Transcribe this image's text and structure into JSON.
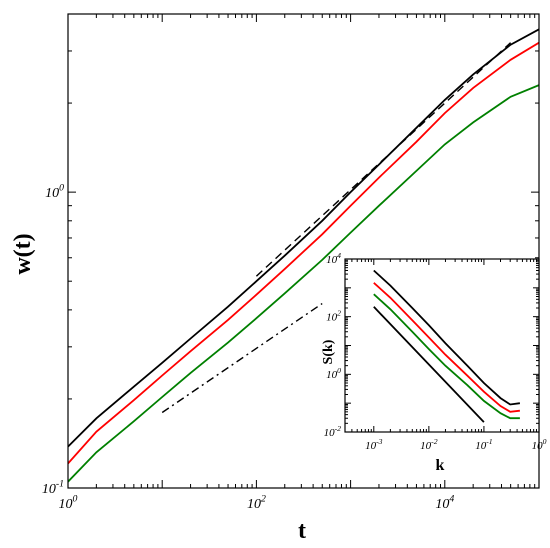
{
  "chart_data": [
    {
      "type": "line",
      "title": "",
      "xlabel": "t",
      "ylabel": "w(t)",
      "xscale": "log",
      "yscale": "log",
      "xlim": [
        1,
        100000
      ],
      "ylim": [
        0.1,
        4
      ],
      "x_tick_labels": [
        {
          "value": 1,
          "base": "10",
          "exp": "0"
        },
        {
          "value": 100,
          "base": "10",
          "exp": "2"
        },
        {
          "value": 10000,
          "base": "10",
          "exp": "4"
        }
      ],
      "y_tick_labels": [
        {
          "value": 0.1,
          "base": "10",
          "exp": "-1"
        },
        {
          "value": 1,
          "base": "10",
          "exp": "0"
        }
      ],
      "grid": false,
      "series": [
        {
          "color": "#000000",
          "style": "solid",
          "x": [
            1,
            2,
            5,
            10,
            20,
            50,
            100,
            200,
            500,
            1000,
            2000,
            5000,
            10000,
            20000,
            50000,
            100000
          ],
          "y": [
            0.138,
            0.172,
            0.22,
            0.265,
            0.32,
            0.41,
            0.5,
            0.61,
            0.8,
            1.0,
            1.24,
            1.65,
            2.05,
            2.5,
            3.15,
            3.55
          ]
        },
        {
          "color": "#ff0000",
          "style": "solid",
          "x": [
            1,
            2,
            5,
            10,
            20,
            50,
            100,
            200,
            500,
            1000,
            2000,
            5000,
            10000,
            20000,
            50000,
            100000
          ],
          "y": [
            0.121,
            0.155,
            0.198,
            0.24,
            0.29,
            0.37,
            0.45,
            0.55,
            0.72,
            0.9,
            1.12,
            1.48,
            1.85,
            2.25,
            2.8,
            3.2
          ]
        },
        {
          "color": "#008000",
          "style": "solid",
          "x": [
            1,
            2,
            5,
            10,
            20,
            50,
            100,
            200,
            500,
            1000,
            2000,
            5000,
            10000,
            20000,
            50000,
            100000
          ],
          "y": [
            0.105,
            0.132,
            0.168,
            0.203,
            0.245,
            0.31,
            0.375,
            0.455,
            0.59,
            0.73,
            0.9,
            1.18,
            1.45,
            1.72,
            2.1,
            2.3
          ]
        },
        {
          "color": "#000000",
          "style": "dashed",
          "x": [
            100,
            50000
          ],
          "y": [
            0.52,
            3.2
          ]
        },
        {
          "color": "#000000",
          "style": "dashdot",
          "x": [
            10,
            500
          ],
          "y": [
            0.18,
            0.42
          ]
        }
      ]
    },
    {
      "type": "line",
      "title": "",
      "xlabel": "k",
      "ylabel": "S(k)",
      "xscale": "log",
      "yscale": "log",
      "xlim": [
        0.0003,
        1
      ],
      "ylim": [
        0.01,
        10000
      ],
      "x_tick_labels": [
        {
          "value": 0.001,
          "base": "10",
          "exp": "-3"
        },
        {
          "value": 0.01,
          "base": "10",
          "exp": "-2"
        },
        {
          "value": 0.1,
          "base": "10",
          "exp": "-1"
        },
        {
          "value": 1,
          "base": "10",
          "exp": "0"
        }
      ],
      "y_tick_labels": [
        {
          "value": 0.01,
          "base": "10",
          "exp": "-2"
        },
        {
          "value": 1,
          "base": "10",
          "exp": "0"
        },
        {
          "value": 100,
          "base": "10",
          "exp": "2"
        },
        {
          "value": 10000,
          "base": "10",
          "exp": "4"
        }
      ],
      "grid": false,
      "series": [
        {
          "color": "#000000",
          "style": "solid",
          "x": [
            0.001,
            0.002,
            0.005,
            0.01,
            0.02,
            0.05,
            0.1,
            0.2,
            0.3,
            0.45
          ],
          "y": [
            4000,
            1200,
            200,
            50,
            12,
            2,
            0.5,
            0.15,
            0.09,
            0.1
          ]
        },
        {
          "color": "#ff0000",
          "style": "solid",
          "x": [
            0.001,
            0.002,
            0.005,
            0.01,
            0.02,
            0.05,
            0.1,
            0.2,
            0.3,
            0.45
          ],
          "y": [
            1500,
            450,
            75,
            19,
            4.8,
            0.9,
            0.25,
            0.08,
            0.05,
            0.055
          ]
        },
        {
          "color": "#008000",
          "style": "solid",
          "x": [
            0.001,
            0.002,
            0.005,
            0.01,
            0.02,
            0.05,
            0.1,
            0.2,
            0.3,
            0.45
          ],
          "y": [
            600,
            180,
            30,
            7.5,
            2,
            0.42,
            0.12,
            0.045,
            0.03,
            0.03
          ]
        },
        {
          "color": "#000000",
          "style": "solid",
          "x": [
            0.001,
            0.1
          ],
          "y": [
            220,
            0.022
          ]
        }
      ]
    }
  ]
}
